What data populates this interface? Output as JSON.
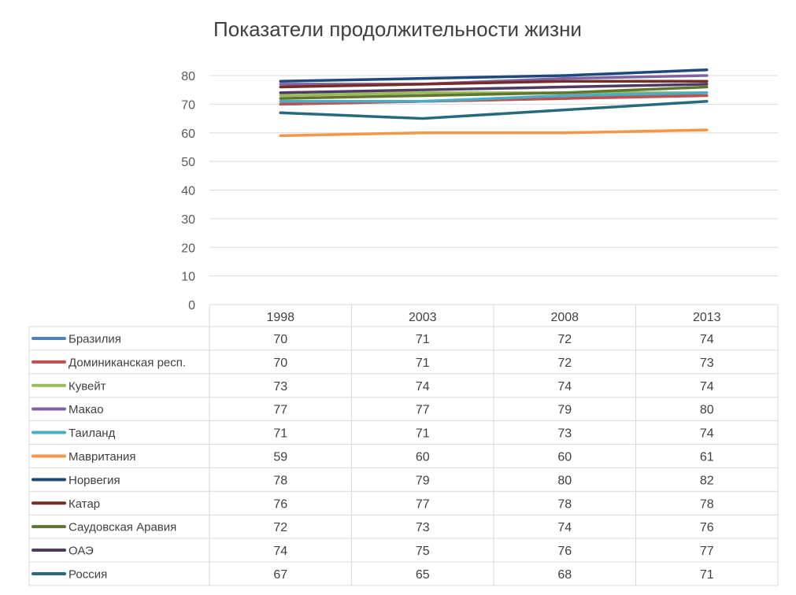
{
  "chart_data": {
    "type": "line",
    "title": "Показатели продолжительности жизни",
    "categories": [
      "1998",
      "2003",
      "2008",
      "2013"
    ],
    "ylim": [
      0,
      80
    ],
    "yticks": [
      0,
      10,
      20,
      30,
      40,
      50,
      60,
      70,
      80
    ],
    "grid": true,
    "legend": "data-table",
    "series": [
      {
        "name": "Бразилия",
        "color": "#4f81bd",
        "values": [
          70,
          71,
          72,
          74
        ]
      },
      {
        "name": "Доминиканская респ.",
        "color": "#c0504d",
        "values": [
          70,
          71,
          72,
          73
        ]
      },
      {
        "name": "Кувейт",
        "color": "#9bbb59",
        "values": [
          73,
          74,
          74,
          74
        ]
      },
      {
        "name": "Макао",
        "color": "#8064a2",
        "values": [
          77,
          77,
          79,
          80
        ]
      },
      {
        "name": "Таиланд",
        "color": "#4bacc6",
        "values": [
          71,
          71,
          73,
          74
        ]
      },
      {
        "name": "Мавритания",
        "color": "#f79646",
        "values": [
          59,
          60,
          60,
          61
        ]
      },
      {
        "name": "Норвегия",
        "color": "#1f497d",
        "values": [
          78,
          79,
          80,
          82
        ]
      },
      {
        "name": "Катар",
        "color": "#772c2a",
        "values": [
          76,
          77,
          78,
          78
        ]
      },
      {
        "name": "Саудовская Аравия",
        "color": "#5f7530",
        "values": [
          72,
          73,
          74,
          76
        ]
      },
      {
        "name": "ОАЭ",
        "color": "#4d3b62",
        "values": [
          74,
          75,
          76,
          77
        ]
      },
      {
        "name": "Россия",
        "color": "#276a7c",
        "values": [
          67,
          65,
          68,
          71
        ]
      }
    ]
  }
}
